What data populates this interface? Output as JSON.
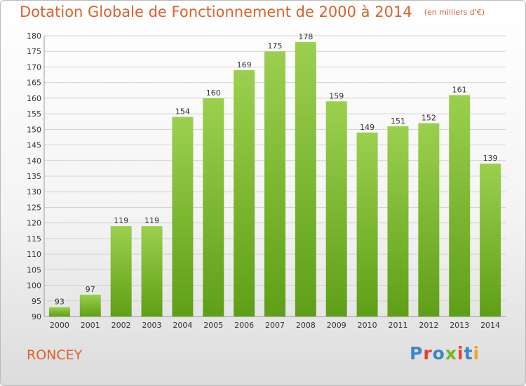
{
  "title": "Dotation Globale de Fonctionnement de 2000 à 2014",
  "unit_note": "(en milliers d'€)",
  "commune": "RONCEY",
  "logo": {
    "letters": [
      "P",
      "r",
      "o",
      "x",
      "i",
      "t",
      "i"
    ],
    "colors": [
      "#3a86c8",
      "#e8432f",
      "#3a86c8",
      "#79b51c",
      "#e8432f",
      "#3a86c8",
      "#f2a51f"
    ]
  },
  "colors": {
    "bar_top": "#9bd04e",
    "bar_bottom": "#5f9f17",
    "grid": "#d2d2d2",
    "title": "#d9622c"
  },
  "chart_data": {
    "type": "bar",
    "categories": [
      "2000",
      "2001",
      "2002",
      "2003",
      "2004",
      "2005",
      "2006",
      "2007",
      "2008",
      "2009",
      "2010",
      "2011",
      "2012",
      "2013",
      "2014"
    ],
    "values": [
      93,
      97,
      119,
      119,
      154,
      160,
      169,
      175,
      178,
      159,
      149,
      151,
      152,
      161,
      139
    ],
    "ylim": [
      90,
      180
    ],
    "yticks": [
      90,
      95,
      100,
      105,
      110,
      115,
      120,
      125,
      130,
      135,
      140,
      145,
      150,
      155,
      160,
      165,
      170,
      175,
      180
    ],
    "grid": true
  }
}
